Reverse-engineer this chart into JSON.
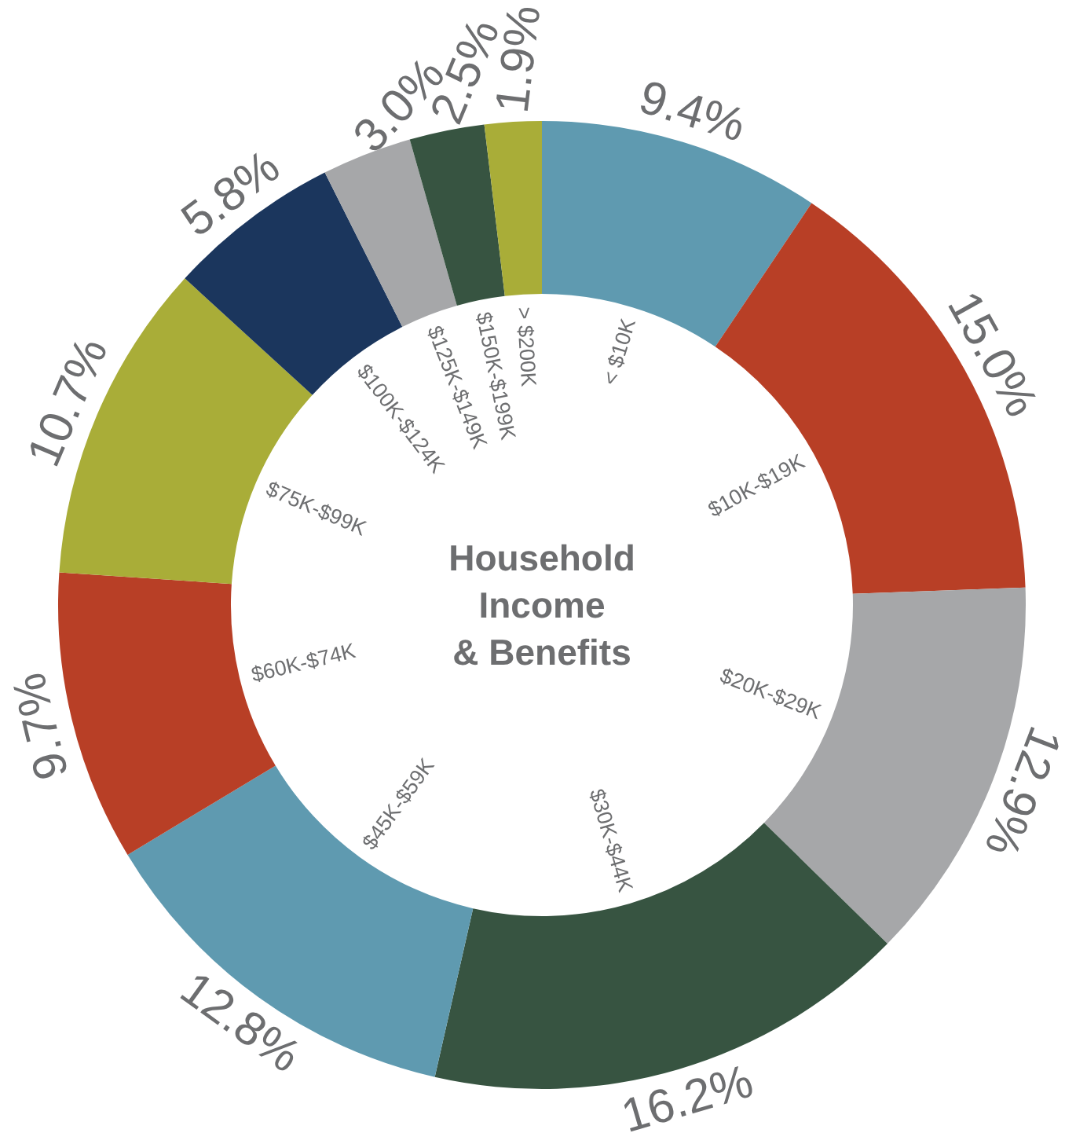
{
  "chart_data": {
    "type": "donut",
    "title": "Household\nIncome\n& Benefits",
    "categories": [
      "< $10K",
      "$10K-$19K",
      "$20K-$29K",
      "$30K-$44K",
      "$45K-$59K",
      "$60K-$74K",
      "$75K-$99K",
      "$100K-$124K",
      "$125K-$149K",
      "$150K-$199K",
      "> $200K"
    ],
    "values": [
      9.4,
      15.0,
      12.9,
      16.2,
      12.8,
      9.7,
      10.7,
      5.8,
      3.0,
      2.5,
      1.9
    ],
    "value_labels": [
      "9.4%",
      "15.0%",
      "12.9%",
      "16.2%",
      "12.8%",
      "9.7%",
      "10.7%",
      "5.8%",
      "3.0%",
      "2.5%",
      "1.9%"
    ],
    "colors": [
      "#5f9ab0",
      "#b83f26",
      "#a6a7a9",
      "#375441",
      "#5f9ab0",
      "#b83f26",
      "#a9ad38",
      "#1b365d",
      "#a6a7a9",
      "#375441",
      "#a9ad38"
    ]
  }
}
